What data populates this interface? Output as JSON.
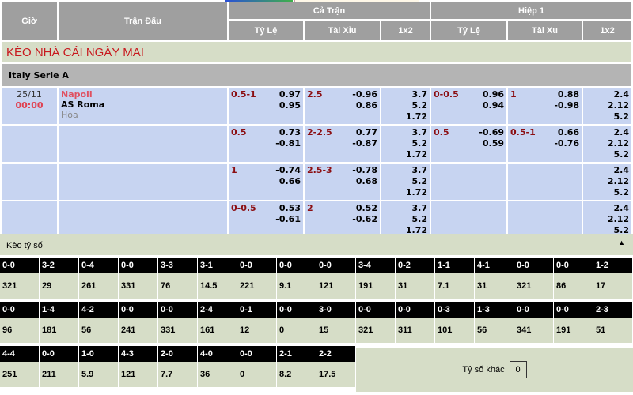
{
  "header": {
    "time": "Giờ",
    "match": "Trận Đấu",
    "full_time": "Cả Trận",
    "first_half": "Hiệp 1",
    "hdp": "Tỷ Lệ",
    "ou": "Tài Xỉu",
    "x12": "1x2",
    "ht_hdp": "Tỷ Lệ",
    "ht_ou": "Tài Xu",
    "ht_x12": "1x2"
  },
  "title": "KÈO NHÀ CÁI NGÀY MAI",
  "league": "Italy Serie A",
  "match": {
    "date": "25/11",
    "time": "00:00",
    "home": "Napoli",
    "away": "AS Roma",
    "draw": "Hòa"
  },
  "rows": [
    {
      "ft_hdp": "0.5-1",
      "ft_hdp_odds": [
        "0.97",
        "0.95"
      ],
      "ft_ou": "2.5",
      "ft_ou_odds": [
        "-0.96",
        "0.86"
      ],
      "ft_1x2": [
        "3.7",
        "5.2",
        "1.72"
      ],
      "ht_hdp": "0-0.5",
      "ht_hdp_odds": [
        "0.96",
        "0.94"
      ],
      "ht_ou": "1",
      "ht_ou_odds": [
        "0.88",
        "-0.98"
      ],
      "ht_1x2": [
        "2.4",
        "2.12",
        "5.2"
      ]
    },
    {
      "ft_hdp": "0.5",
      "ft_hdp_odds": [
        "0.73",
        "-0.81"
      ],
      "ft_ou": "2-2.5",
      "ft_ou_odds": [
        "0.77",
        "-0.87"
      ],
      "ft_1x2": [
        "3.7",
        "5.2",
        "1.72"
      ],
      "ht_hdp": "0.5",
      "ht_hdp_odds": [
        "-0.69",
        "0.59"
      ],
      "ht_ou": "0.5-1",
      "ht_ou_odds": [
        "0.66",
        "-0.76"
      ],
      "ht_1x2": [
        "2.4",
        "2.12",
        "5.2"
      ]
    },
    {
      "ft_hdp": "1",
      "ft_hdp_odds": [
        "-0.74",
        "0.66"
      ],
      "ft_ou": "2.5-3",
      "ft_ou_odds": [
        "-0.78",
        "0.68"
      ],
      "ft_1x2": [
        "3.7",
        "5.2",
        "1.72"
      ],
      "ht_hdp": "",
      "ht_hdp_odds": [
        "",
        ""
      ],
      "ht_ou": "",
      "ht_ou_odds": [
        "",
        ""
      ],
      "ht_1x2": [
        "2.4",
        "2.12",
        "5.2"
      ]
    },
    {
      "ft_hdp": "0-0.5",
      "ft_hdp_odds": [
        "0.53",
        "-0.61"
      ],
      "ft_ou": "2",
      "ft_ou_odds": [
        "0.52",
        "-0.62"
      ],
      "ft_1x2": [
        "3.7",
        "5.2",
        "1.72"
      ],
      "ht_hdp": "",
      "ht_hdp_odds": [
        "",
        ""
      ],
      "ht_ou": "",
      "ht_ou_odds": [
        "",
        ""
      ],
      "ht_1x2": [
        "2.4",
        "2.12",
        "5.2"
      ]
    }
  ],
  "correct_score": {
    "title": "Kèo tỷ số",
    "collapse_icon": "triangle-up-icon",
    "rows": [
      {
        "scores": [
          "0-0",
          "3-2",
          "0-4",
          "0-0",
          "3-3",
          "3-1",
          "0-0",
          "0-0",
          "0-0",
          "3-4",
          "0-2",
          "1-1",
          "4-1",
          "0-0",
          "0-0",
          "1-2"
        ],
        "odds": [
          "321",
          "29",
          "261",
          "331",
          "76",
          "14.5",
          "221",
          "9.1",
          "121",
          "191",
          "31",
          "7.1",
          "31",
          "321",
          "86",
          "17"
        ]
      },
      {
        "scores": [
          "0-0",
          "1-4",
          "4-2",
          "0-0",
          "0-0",
          "2-4",
          "0-1",
          "0-0",
          "3-0",
          "0-0",
          "0-0",
          "0-3",
          "1-3",
          "0-0",
          "0-0",
          "2-3"
        ],
        "odds": [
          "96",
          "181",
          "56",
          "241",
          "331",
          "161",
          "12",
          "0",
          "15",
          "321",
          "311",
          "101",
          "56",
          "341",
          "191",
          "51"
        ]
      },
      {
        "scores": [
          "4-4",
          "0-0",
          "1-0",
          "4-3",
          "2-0",
          "4-0",
          "0-0",
          "2-1",
          "2-2"
        ],
        "odds": [
          "251",
          "211",
          "5.9",
          "121",
          "7.7",
          "36",
          "0",
          "8.2",
          "17.5"
        ]
      }
    ],
    "other_label": "Tỷ số khác",
    "other_value": "0"
  }
}
